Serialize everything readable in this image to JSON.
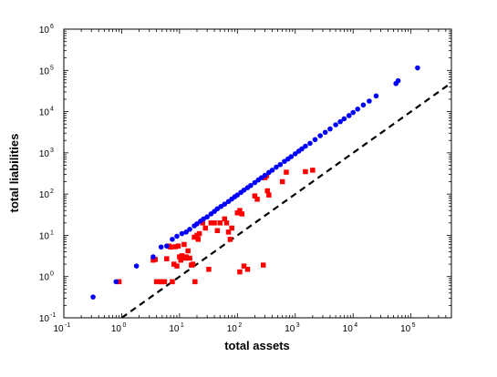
{
  "chart_data": {
    "type": "scatter",
    "xlabel": "total assets",
    "ylabel": "total liabilities",
    "xscale": "log",
    "yscale": "log",
    "xlim": [
      0.1,
      500000
    ],
    "ylim": [
      0.1,
      1000000
    ],
    "x_ticks": [
      0.1,
      1,
      10,
      100,
      1000,
      10000,
      100000
    ],
    "x_tick_labels": [
      {
        "base": "10",
        "exp": "-1"
      },
      {
        "base": "10",
        "exp": "0"
      },
      {
        "base": "10",
        "exp": "1"
      },
      {
        "base": "10",
        "exp": "2"
      },
      {
        "base": "10",
        "exp": "3"
      },
      {
        "base": "10",
        "exp": "4"
      },
      {
        "base": "10",
        "exp": "5"
      }
    ],
    "y_ticks": [
      0.1,
      1,
      10,
      100,
      1000,
      10000,
      100000,
      1000000
    ],
    "y_tick_labels": [
      {
        "base": "10",
        "exp": "-1"
      },
      {
        "base": "10",
        "exp": "0"
      },
      {
        "base": "10",
        "exp": "1"
      },
      {
        "base": "10",
        "exp": "2"
      },
      {
        "base": "10",
        "exp": "3"
      },
      {
        "base": "10",
        "exp": "4"
      },
      {
        "base": "10",
        "exp": "5"
      },
      {
        "base": "10",
        "exp": "6"
      }
    ],
    "grid": false,
    "legend": "none",
    "series": [
      {
        "marker": "circle",
        "color": "#0000ff",
        "points": [
          [
            0.32,
            0.32
          ],
          [
            0.8,
            0.75
          ],
          [
            1.8,
            1.8
          ],
          [
            3.5,
            3.0
          ],
          [
            4.8,
            5.2
          ],
          [
            6.0,
            5.5
          ],
          [
            7.5,
            8.0
          ],
          [
            9,
            9.5
          ],
          [
            11,
            11
          ],
          [
            13,
            12
          ],
          [
            15,
            14
          ],
          [
            18,
            17
          ],
          [
            20,
            19
          ],
          [
            23,
            22
          ],
          [
            26,
            25
          ],
          [
            30,
            28
          ],
          [
            35,
            33
          ],
          [
            40,
            38
          ],
          [
            45,
            44
          ],
          [
            52,
            50
          ],
          [
            60,
            57
          ],
          [
            70,
            66
          ],
          [
            80,
            76
          ],
          [
            90,
            86
          ],
          [
            100,
            95
          ],
          [
            115,
            110
          ],
          [
            130,
            125
          ],
          [
            150,
            143
          ],
          [
            170,
            162
          ],
          [
            200,
            190
          ],
          [
            230,
            220
          ],
          [
            260,
            250
          ],
          [
            300,
            285
          ],
          [
            350,
            335
          ],
          [
            400,
            380
          ],
          [
            470,
            450
          ],
          [
            550,
            520
          ],
          [
            650,
            620
          ],
          [
            750,
            710
          ],
          [
            850,
            810
          ],
          [
            1000,
            950
          ],
          [
            1150,
            1100
          ],
          [
            1300,
            1250
          ],
          [
            1500,
            1450
          ],
          [
            1800,
            1700
          ],
          [
            2200,
            2100
          ],
          [
            2700,
            2600
          ],
          [
            3300,
            3150
          ],
          [
            4000,
            3800
          ],
          [
            5000,
            4800
          ],
          [
            6000,
            5700
          ],
          [
            7000,
            6700
          ],
          [
            8500,
            8000
          ],
          [
            10000,
            9500
          ],
          [
            12000,
            11500
          ],
          [
            15000,
            14500
          ],
          [
            19000,
            18000
          ],
          [
            25000,
            24000
          ],
          [
            55000,
            48000
          ],
          [
            60000,
            56000
          ],
          [
            130000,
            115000
          ]
        ]
      },
      {
        "marker": "square",
        "color": "#ff0000",
        "points": [
          [
            0.9,
            0.75
          ],
          [
            3.5,
            2.5
          ],
          [
            3.8,
            2.6
          ],
          [
            4.0,
            0.75
          ],
          [
            4.5,
            0.75
          ],
          [
            5.0,
            0.75
          ],
          [
            5.5,
            0.75
          ],
          [
            6.0,
            2.7
          ],
          [
            6.5,
            5.5
          ],
          [
            7.0,
            5.2
          ],
          [
            7.5,
            0.75
          ],
          [
            8.0,
            2.0
          ],
          [
            8.5,
            5.3
          ],
          [
            9.0,
            1.8
          ],
          [
            9.5,
            5.5
          ],
          [
            10,
            3.0
          ],
          [
            10.5,
            2.5
          ],
          [
            11,
            3.2
          ],
          [
            12,
            6.0
          ],
          [
            12.5,
            2.8
          ],
          [
            13,
            3.0
          ],
          [
            14,
            4.2
          ],
          [
            15,
            2.8
          ],
          [
            16,
            1.9
          ],
          [
            17,
            2.0
          ],
          [
            18,
            9.0
          ],
          [
            18.5,
            0.75
          ],
          [
            20,
            10
          ],
          [
            21,
            8.0
          ],
          [
            22,
            11
          ],
          [
            25,
            20
          ],
          [
            28,
            15
          ],
          [
            32,
            1.5
          ],
          [
            35,
            20
          ],
          [
            40,
            20
          ],
          [
            45,
            13
          ],
          [
            50,
            20
          ],
          [
            60,
            25
          ],
          [
            65,
            20
          ],
          [
            70,
            12
          ],
          [
            75,
            8.0
          ],
          [
            80,
            15
          ],
          [
            100,
            35
          ],
          [
            110,
            40
          ],
          [
            120,
            33
          ],
          [
            110,
            1.3
          ],
          [
            130,
            1.8
          ],
          [
            150,
            1.5
          ],
          [
            200,
            90
          ],
          [
            220,
            75
          ],
          [
            280,
            1.9
          ],
          [
            300,
            250
          ],
          [
            320,
            280
          ],
          [
            330,
            120
          ],
          [
            350,
            95
          ],
          [
            600,
            200
          ],
          [
            700,
            340
          ],
          [
            1500,
            350
          ],
          [
            2000,
            380
          ]
        ]
      }
    ],
    "reference_line": {
      "style": "dashed",
      "color": "#000000",
      "points": [
        [
          1,
          0.1
        ],
        [
          500000,
          50000
        ]
      ]
    }
  }
}
